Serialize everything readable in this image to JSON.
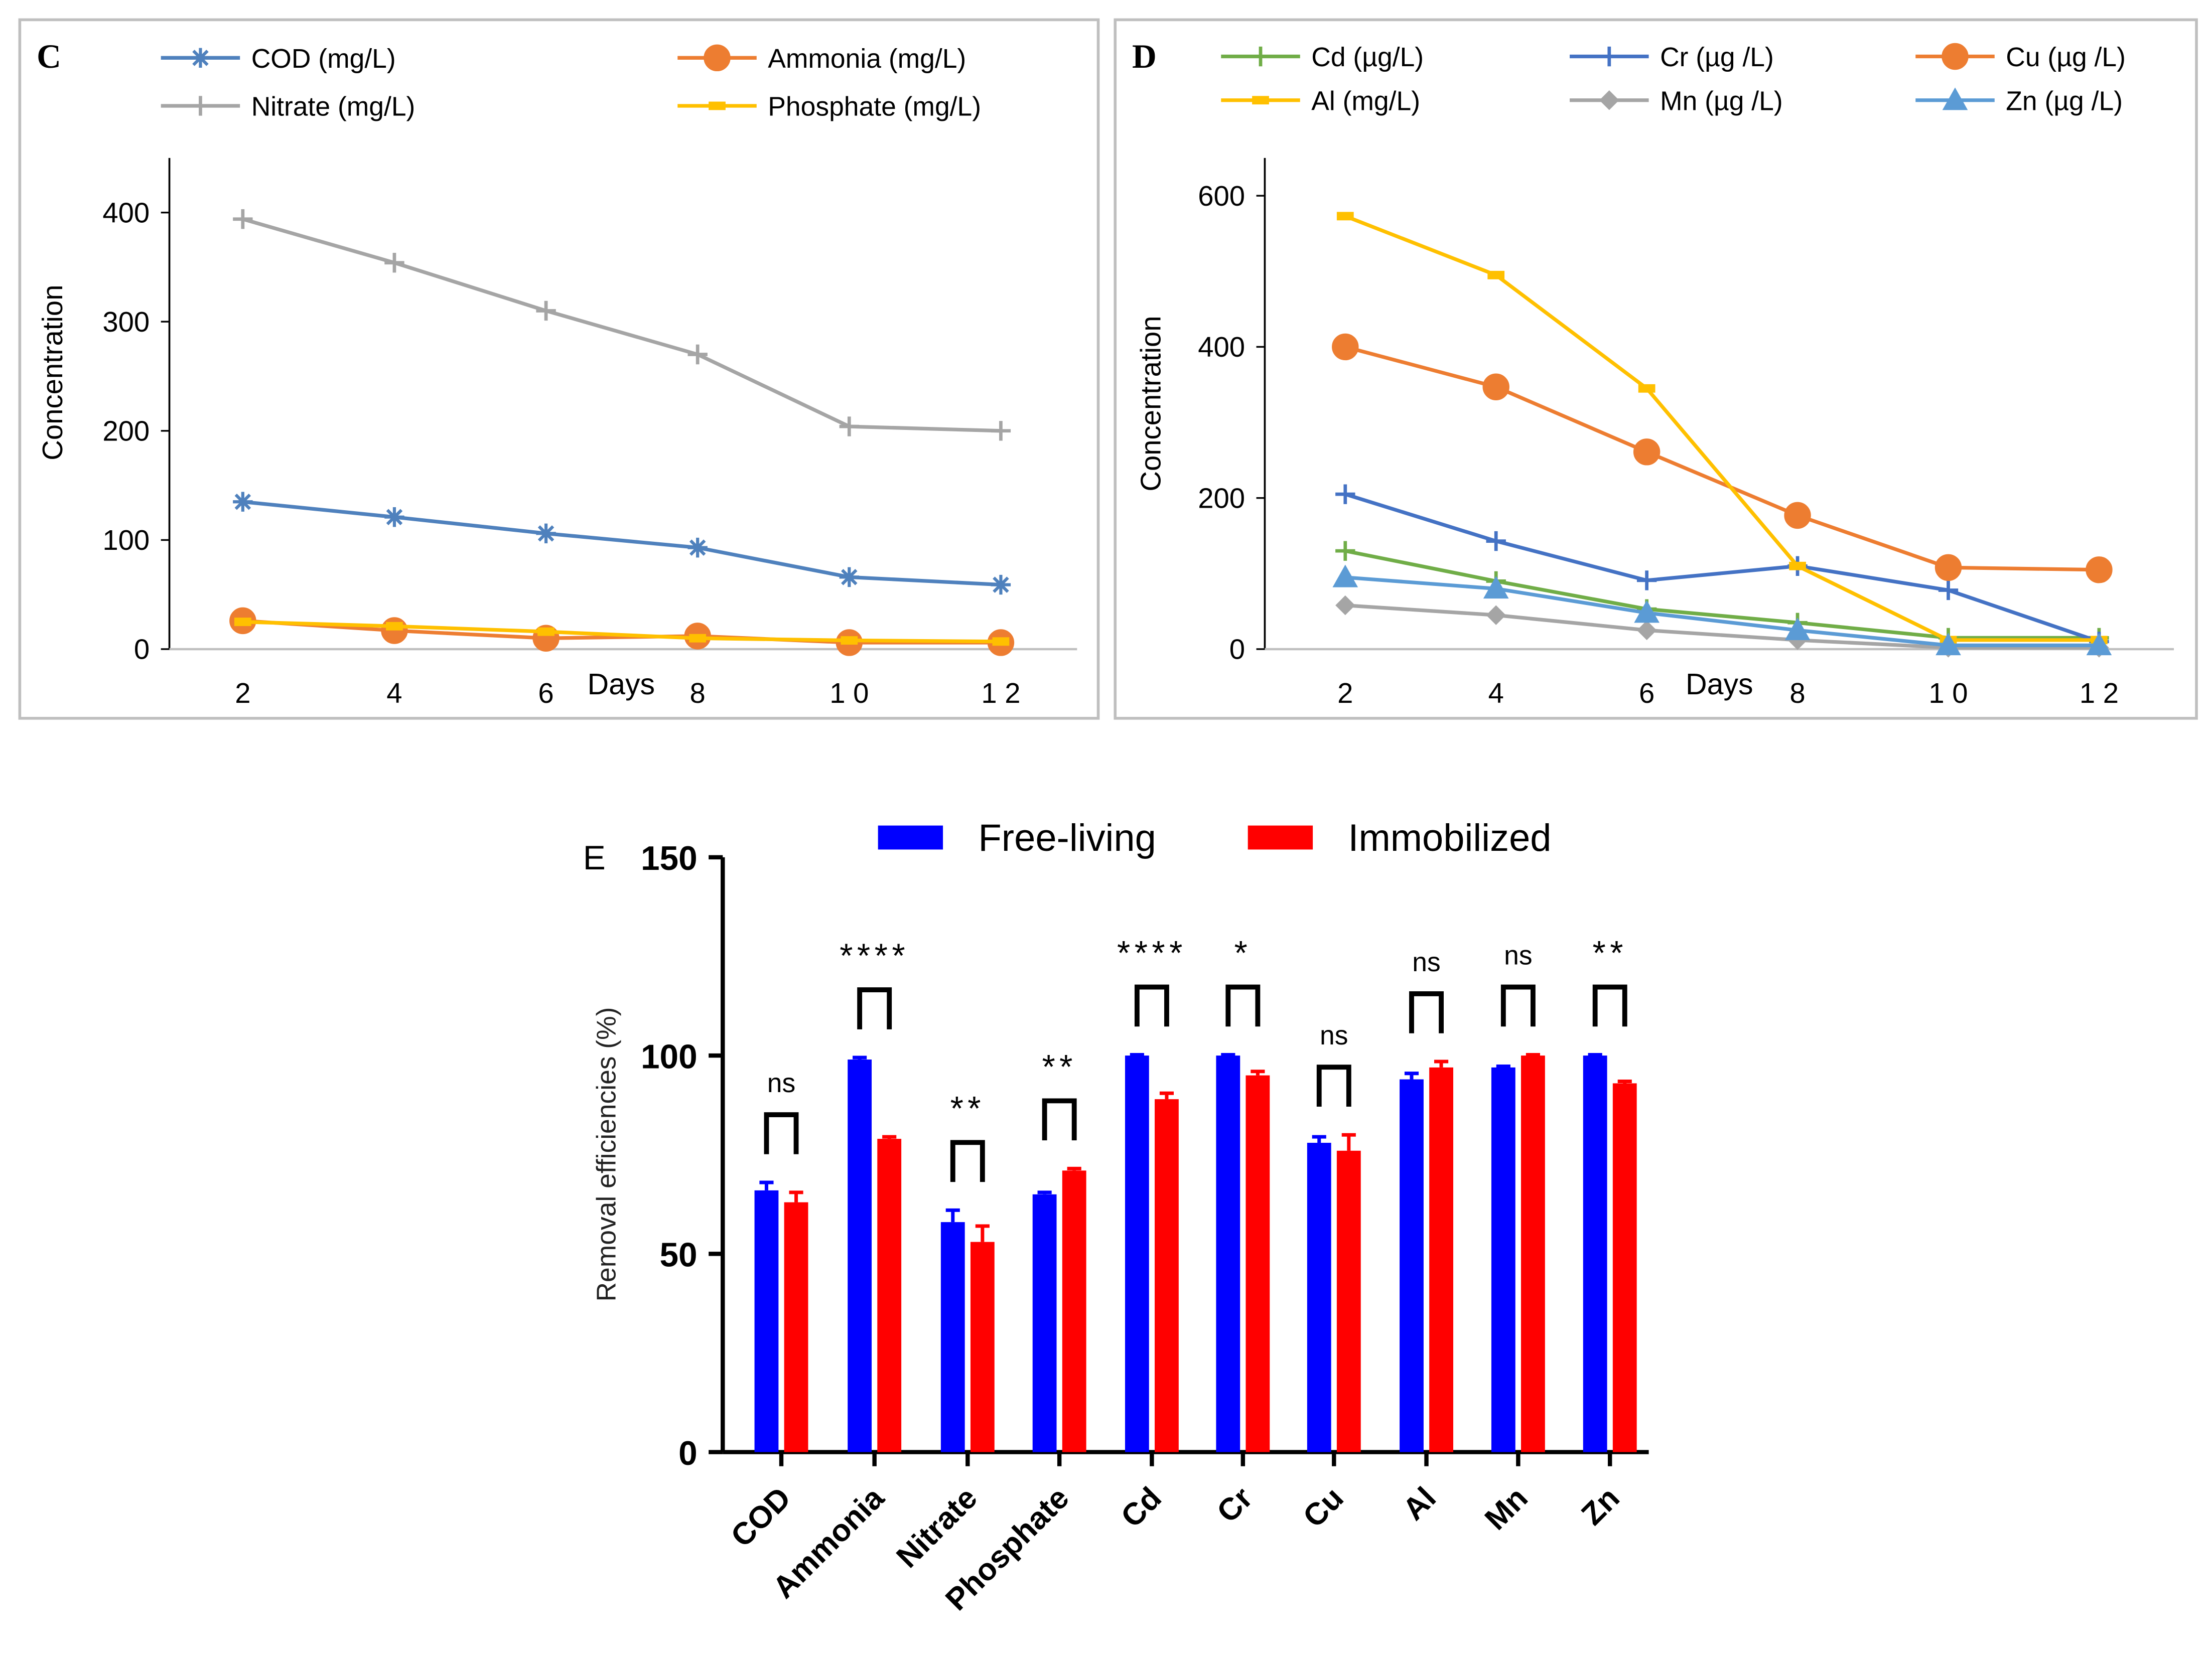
{
  "chart_data": [
    {
      "panel_label": "C",
      "type": "line",
      "xlabel": "Days",
      "ylabel": "Concentration",
      "x": [
        2,
        4,
        6,
        8,
        10,
        12
      ],
      "x_tick_labels": [
        "2",
        "4",
        "6",
        "8",
        "1 0",
        "1 2"
      ],
      "ylim": [
        0,
        450
      ],
      "y_ticks": [
        0,
        100,
        200,
        300,
        400
      ],
      "grid": false,
      "legend_position": "top",
      "series": [
        {
          "name": "COD (mg/L)",
          "color": "#4f81bd",
          "marker": "asterisk",
          "values": [
            135,
            121,
            106,
            93,
            66,
            59
          ]
        },
        {
          "name": "Ammonia (mg/L)",
          "color": "#ed7d31",
          "marker": "circle",
          "values": [
            26,
            17,
            10,
            12,
            6,
            6
          ]
        },
        {
          "name": "Nitrate (mg/L)",
          "color": "#a5a5a5",
          "marker": "plus",
          "values": [
            394,
            354,
            310,
            270,
            204,
            200
          ]
        },
        {
          "name": "Phosphate  (mg/L)",
          "color": "#ffc000",
          "marker": "dash",
          "values": [
            25,
            21,
            16,
            10,
            8,
            7
          ]
        }
      ]
    },
    {
      "panel_label": "D",
      "type": "line",
      "xlabel": "Days",
      "ylabel": "Concentration",
      "x": [
        2,
        4,
        6,
        8,
        10,
        12
      ],
      "x_tick_labels": [
        "2",
        "4",
        "6",
        "8",
        "1 0",
        "1 2"
      ],
      "ylim": [
        0,
        650
      ],
      "y_ticks": [
        0,
        200,
        400,
        600
      ],
      "grid": false,
      "legend_position": "top",
      "series": [
        {
          "name": "Cd (µg/L)",
          "color": "#70ad47",
          "marker": "plus",
          "values": [
            130,
            90,
            53,
            35,
            15,
            15
          ]
        },
        {
          "name": "Cr (µg /L)",
          "color": "#4472c4",
          "marker": "plus",
          "values": [
            205,
            143,
            91,
            110,
            78,
            10
          ]
        },
        {
          "name": "Cu (µg /L)",
          "color": "#ed7d31",
          "marker": "circle",
          "values": [
            400,
            347,
            261,
            177,
            108,
            105
          ]
        },
        {
          "name": "Al (mg/L)",
          "color": "#ffc000",
          "marker": "dash",
          "values": [
            573,
            495,
            345,
            110,
            12,
            12
          ]
        },
        {
          "name": "Mn (µg /L)",
          "color": "#a5a5a5",
          "marker": "diamond",
          "values": [
            58,
            45,
            25,
            12,
            2,
            2
          ]
        },
        {
          "name": "Zn (µg /L)",
          "color": "#5b9bd5",
          "marker": "triangle",
          "values": [
            95,
            80,
            48,
            25,
            5,
            5
          ]
        }
      ]
    },
    {
      "panel_label": "E",
      "type": "bar",
      "xlabel": "",
      "ylabel": "Removal efficiencies (%)",
      "ylim": [
        0,
        150
      ],
      "y_ticks": [
        0,
        50,
        100,
        150
      ],
      "grid": false,
      "legend_position": "top",
      "categories": [
        "COD",
        "Ammonia",
        "Nitrate",
        "Phosphate",
        "Cd",
        "Cr",
        "Cu",
        "Al",
        "Mn",
        "Zn"
      ],
      "series": [
        {
          "name": "Free-living",
          "color": "#0000ff",
          "values": [
            66,
            99,
            58,
            65,
            100,
            100,
            78,
            94,
            97,
            100
          ],
          "errors": [
            2,
            0.5,
            3,
            0.5,
            0.2,
            0.2,
            1.5,
            1.5,
            0.3,
            0.2
          ]
        },
        {
          "name": "Immobilized",
          "color": "#ff0000",
          "values": [
            63,
            79,
            53,
            71,
            89,
            95,
            76,
            97,
            100,
            93
          ],
          "errors": [
            2.5,
            0.5,
            4,
            0.5,
            1.5,
            1,
            4,
            1.5,
            0.2,
            0.5
          ]
        }
      ],
      "significance": [
        "ns",
        "****",
        "**",
        "**",
        "****",
        "*",
        "ns",
        "ns",
        "ns",
        "**"
      ]
    }
  ]
}
